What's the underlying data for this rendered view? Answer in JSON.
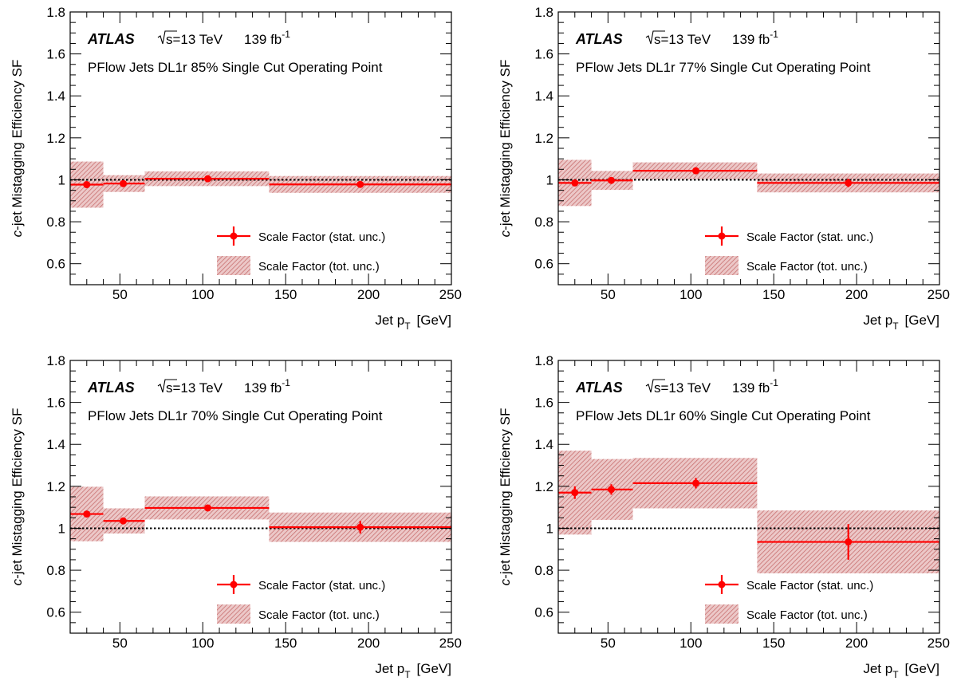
{
  "colors": {
    "series": "#ff0000",
    "band": "#c87070",
    "frame": "#000000"
  },
  "chart_data": [
    {
      "type": "scatter",
      "experiment": "ATLAS",
      "energy_text": "s=13 TeV",
      "lumi_text": "139 fb",
      "lumi_exp": "-1",
      "subtitle": "PFlow Jets DL1r 85% Single Cut Operating Point",
      "ylabel_italic": "c",
      "ylabel_rest": "-jet Mistagging Efficiency SF",
      "xlabel_main": "Jet p",
      "xlabel_sub": "T",
      "xlabel_unit": "[GeV]",
      "xlim": [
        20,
        250
      ],
      "ylim": [
        0.5,
        1.8
      ],
      "xticks": [
        "50",
        "100",
        "150",
        "200",
        "250"
      ],
      "yticks": [
        "0.6",
        "0.8",
        "1",
        "1.2",
        "1.4",
        "1.6",
        "1.8"
      ],
      "reference_line": 1.0,
      "legend": {
        "position": "bottom-right",
        "entries": [
          "Scale Factor (stat. unc.)",
          "Scale Factor (tot. unc.)"
        ]
      },
      "series": [
        {
          "bins": [
            [
              20,
              40
            ],
            [
              40,
              65
            ],
            [
              65,
              140
            ],
            [
              140,
              250
            ]
          ],
          "x": [
            30,
            52,
            103,
            195
          ],
          "y": [
            0.977,
            0.982,
            1.005,
            0.978
          ],
          "stat_err": [
            0.006,
            0.005,
            0.005,
            0.008
          ],
          "tot_err": [
            0.11,
            0.04,
            0.035,
            0.04
          ]
        }
      ]
    },
    {
      "type": "scatter",
      "experiment": "ATLAS",
      "energy_text": "s=13 TeV",
      "lumi_text": "139 fb",
      "lumi_exp": "-1",
      "subtitle": "PFlow Jets DL1r 77% Single Cut Operating Point",
      "ylabel_italic": "c",
      "ylabel_rest": "-jet Mistagging Efficiency SF",
      "xlabel_main": "Jet p",
      "xlabel_sub": "T",
      "xlabel_unit": "[GeV]",
      "xlim": [
        20,
        250
      ],
      "ylim": [
        0.5,
        1.8
      ],
      "xticks": [
        "50",
        "100",
        "150",
        "200",
        "250"
      ],
      "yticks": [
        "0.6",
        "0.8",
        "1",
        "1.2",
        "1.4",
        "1.6",
        "1.8"
      ],
      "reference_line": 1.0,
      "legend": {
        "position": "bottom-right",
        "entries": [
          "Scale Factor (stat. unc.)",
          "Scale Factor (tot. unc.)"
        ]
      },
      "series": [
        {
          "bins": [
            [
              20,
              40
            ],
            [
              40,
              65
            ],
            [
              65,
              140
            ],
            [
              140,
              250
            ]
          ],
          "x": [
            30,
            52,
            103,
            195
          ],
          "y": [
            0.985,
            0.997,
            1.043,
            0.985
          ],
          "stat_err": [
            0.007,
            0.006,
            0.007,
            0.02
          ],
          "tot_err": [
            0.11,
            0.045,
            0.04,
            0.045
          ]
        }
      ]
    },
    {
      "type": "scatter",
      "experiment": "ATLAS",
      "energy_text": "s=13 TeV",
      "lumi_text": "139 fb",
      "lumi_exp": "-1",
      "subtitle": "PFlow Jets DL1r 70% Single Cut Operating Point",
      "ylabel_italic": "c",
      "ylabel_rest": "-jet Mistagging Efficiency SF",
      "xlabel_main": "Jet p",
      "xlabel_sub": "T",
      "xlabel_unit": "[GeV]",
      "xlim": [
        20,
        250
      ],
      "ylim": [
        0.5,
        1.8
      ],
      "xticks": [
        "50",
        "100",
        "150",
        "200",
        "250"
      ],
      "yticks": [
        "0.6",
        "0.8",
        "1",
        "1.2",
        "1.4",
        "1.6",
        "1.8"
      ],
      "reference_line": 1.0,
      "legend": {
        "position": "bottom-right",
        "entries": [
          "Scale Factor (stat. unc.)",
          "Scale Factor (tot. unc.)"
        ]
      },
      "series": [
        {
          "bins": [
            [
              20,
              40
            ],
            [
              40,
              65
            ],
            [
              65,
              140
            ],
            [
              140,
              250
            ]
          ],
          "x": [
            30,
            52,
            103,
            195
          ],
          "y": [
            1.068,
            1.035,
            1.097,
            1.005
          ],
          "stat_err": [
            0.012,
            0.01,
            0.012,
            0.03
          ],
          "tot_err": [
            0.13,
            0.06,
            0.055,
            0.07
          ]
        }
      ]
    },
    {
      "type": "scatter",
      "experiment": "ATLAS",
      "energy_text": "s=13 TeV",
      "lumi_text": "139 fb",
      "lumi_exp": "-1",
      "subtitle": "PFlow Jets DL1r 60% Single Cut Operating Point",
      "ylabel_italic": "c",
      "ylabel_rest": "-jet Mistagging Efficiency SF",
      "xlabel_main": "Jet p",
      "xlabel_sub": "T",
      "xlabel_unit": "[GeV]",
      "xlim": [
        20,
        250
      ],
      "ylim": [
        0.5,
        1.8
      ],
      "xticks": [
        "50",
        "100",
        "150",
        "200",
        "250"
      ],
      "yticks": [
        "0.6",
        "0.8",
        "1",
        "1.2",
        "1.4",
        "1.6",
        "1.8"
      ],
      "reference_line": 1.0,
      "legend": {
        "position": "bottom-right",
        "entries": [
          "Scale Factor (stat. unc.)",
          "Scale Factor (tot. unc.)"
        ]
      },
      "series": [
        {
          "bins": [
            [
              20,
              40
            ],
            [
              40,
              65
            ],
            [
              65,
              140
            ],
            [
              140,
              250
            ]
          ],
          "x": [
            30,
            52,
            103,
            195
          ],
          "y": [
            1.17,
            1.185,
            1.215,
            0.935
          ],
          "stat_err": [
            0.03,
            0.025,
            0.025,
            0.085
          ],
          "tot_err": [
            0.2,
            0.145,
            0.12,
            0.15
          ]
        }
      ]
    }
  ]
}
